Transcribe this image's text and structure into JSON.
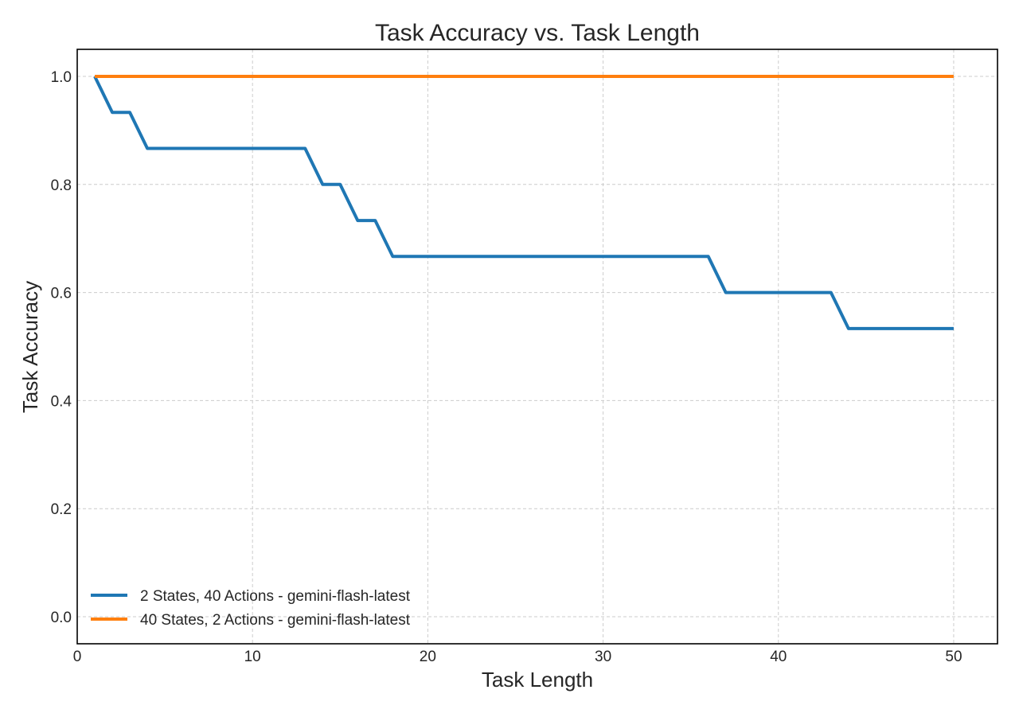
{
  "chart_data": {
    "type": "line",
    "title": "Task Accuracy vs. Task Length",
    "xlabel": "Task Length",
    "ylabel": "Task Accuracy",
    "xlim": [
      0,
      52.5
    ],
    "ylim": [
      -0.05,
      1.05
    ],
    "xticks": [
      0,
      10,
      20,
      30,
      40,
      50
    ],
    "yticks": [
      0.0,
      0.2,
      0.4,
      0.6,
      0.8,
      1.0
    ],
    "xtick_labels": [
      "0",
      "10",
      "20",
      "30",
      "40",
      "50"
    ],
    "ytick_labels": [
      "0.0",
      "0.2",
      "0.4",
      "0.6",
      "0.8",
      "1.0"
    ],
    "grid": true,
    "legend_position": "lower-left",
    "series": [
      {
        "name": "2 States, 40 Actions - gemini-flash-latest",
        "color": "#1f77b4",
        "x": [
          1,
          2,
          3,
          4,
          5,
          6,
          7,
          8,
          9,
          10,
          11,
          12,
          13,
          14,
          15,
          16,
          17,
          18,
          19,
          20,
          21,
          22,
          23,
          24,
          25,
          26,
          27,
          28,
          29,
          30,
          31,
          32,
          33,
          34,
          35,
          36,
          37,
          38,
          39,
          40,
          41,
          42,
          43,
          44,
          45,
          46,
          47,
          48,
          49,
          50
        ],
        "y": [
          1.0,
          0.9333,
          0.9333,
          0.8667,
          0.8667,
          0.8667,
          0.8667,
          0.8667,
          0.8667,
          0.8667,
          0.8667,
          0.8667,
          0.8667,
          0.8,
          0.8,
          0.7333,
          0.7333,
          0.6667,
          0.6667,
          0.6667,
          0.6667,
          0.6667,
          0.6667,
          0.6667,
          0.6667,
          0.6667,
          0.6667,
          0.6667,
          0.6667,
          0.6667,
          0.6667,
          0.6667,
          0.6667,
          0.6667,
          0.6667,
          0.6667,
          0.6,
          0.6,
          0.6,
          0.6,
          0.6,
          0.6,
          0.6,
          0.5333,
          0.5333,
          0.5333,
          0.5333,
          0.5333,
          0.5333,
          0.5333
        ]
      },
      {
        "name": "40 States, 2 Actions - gemini-flash-latest",
        "color": "#ff7f0e",
        "x": [
          1,
          2,
          3,
          4,
          5,
          6,
          7,
          8,
          9,
          10,
          11,
          12,
          13,
          14,
          15,
          16,
          17,
          18,
          19,
          20,
          21,
          22,
          23,
          24,
          25,
          26,
          27,
          28,
          29,
          30,
          31,
          32,
          33,
          34,
          35,
          36,
          37,
          38,
          39,
          40,
          41,
          42,
          43,
          44,
          45,
          46,
          47,
          48,
          49,
          50
        ],
        "y": [
          1.0,
          1.0,
          1.0,
          1.0,
          1.0,
          1.0,
          1.0,
          1.0,
          1.0,
          1.0,
          1.0,
          1.0,
          1.0,
          1.0,
          1.0,
          1.0,
          1.0,
          1.0,
          1.0,
          1.0,
          1.0,
          1.0,
          1.0,
          1.0,
          1.0,
          1.0,
          1.0,
          1.0,
          1.0,
          1.0,
          1.0,
          1.0,
          1.0,
          1.0,
          1.0,
          1.0,
          1.0,
          1.0,
          1.0,
          1.0,
          1.0,
          1.0,
          1.0,
          1.0,
          1.0,
          1.0,
          1.0,
          1.0,
          1.0,
          1.0
        ]
      }
    ]
  }
}
